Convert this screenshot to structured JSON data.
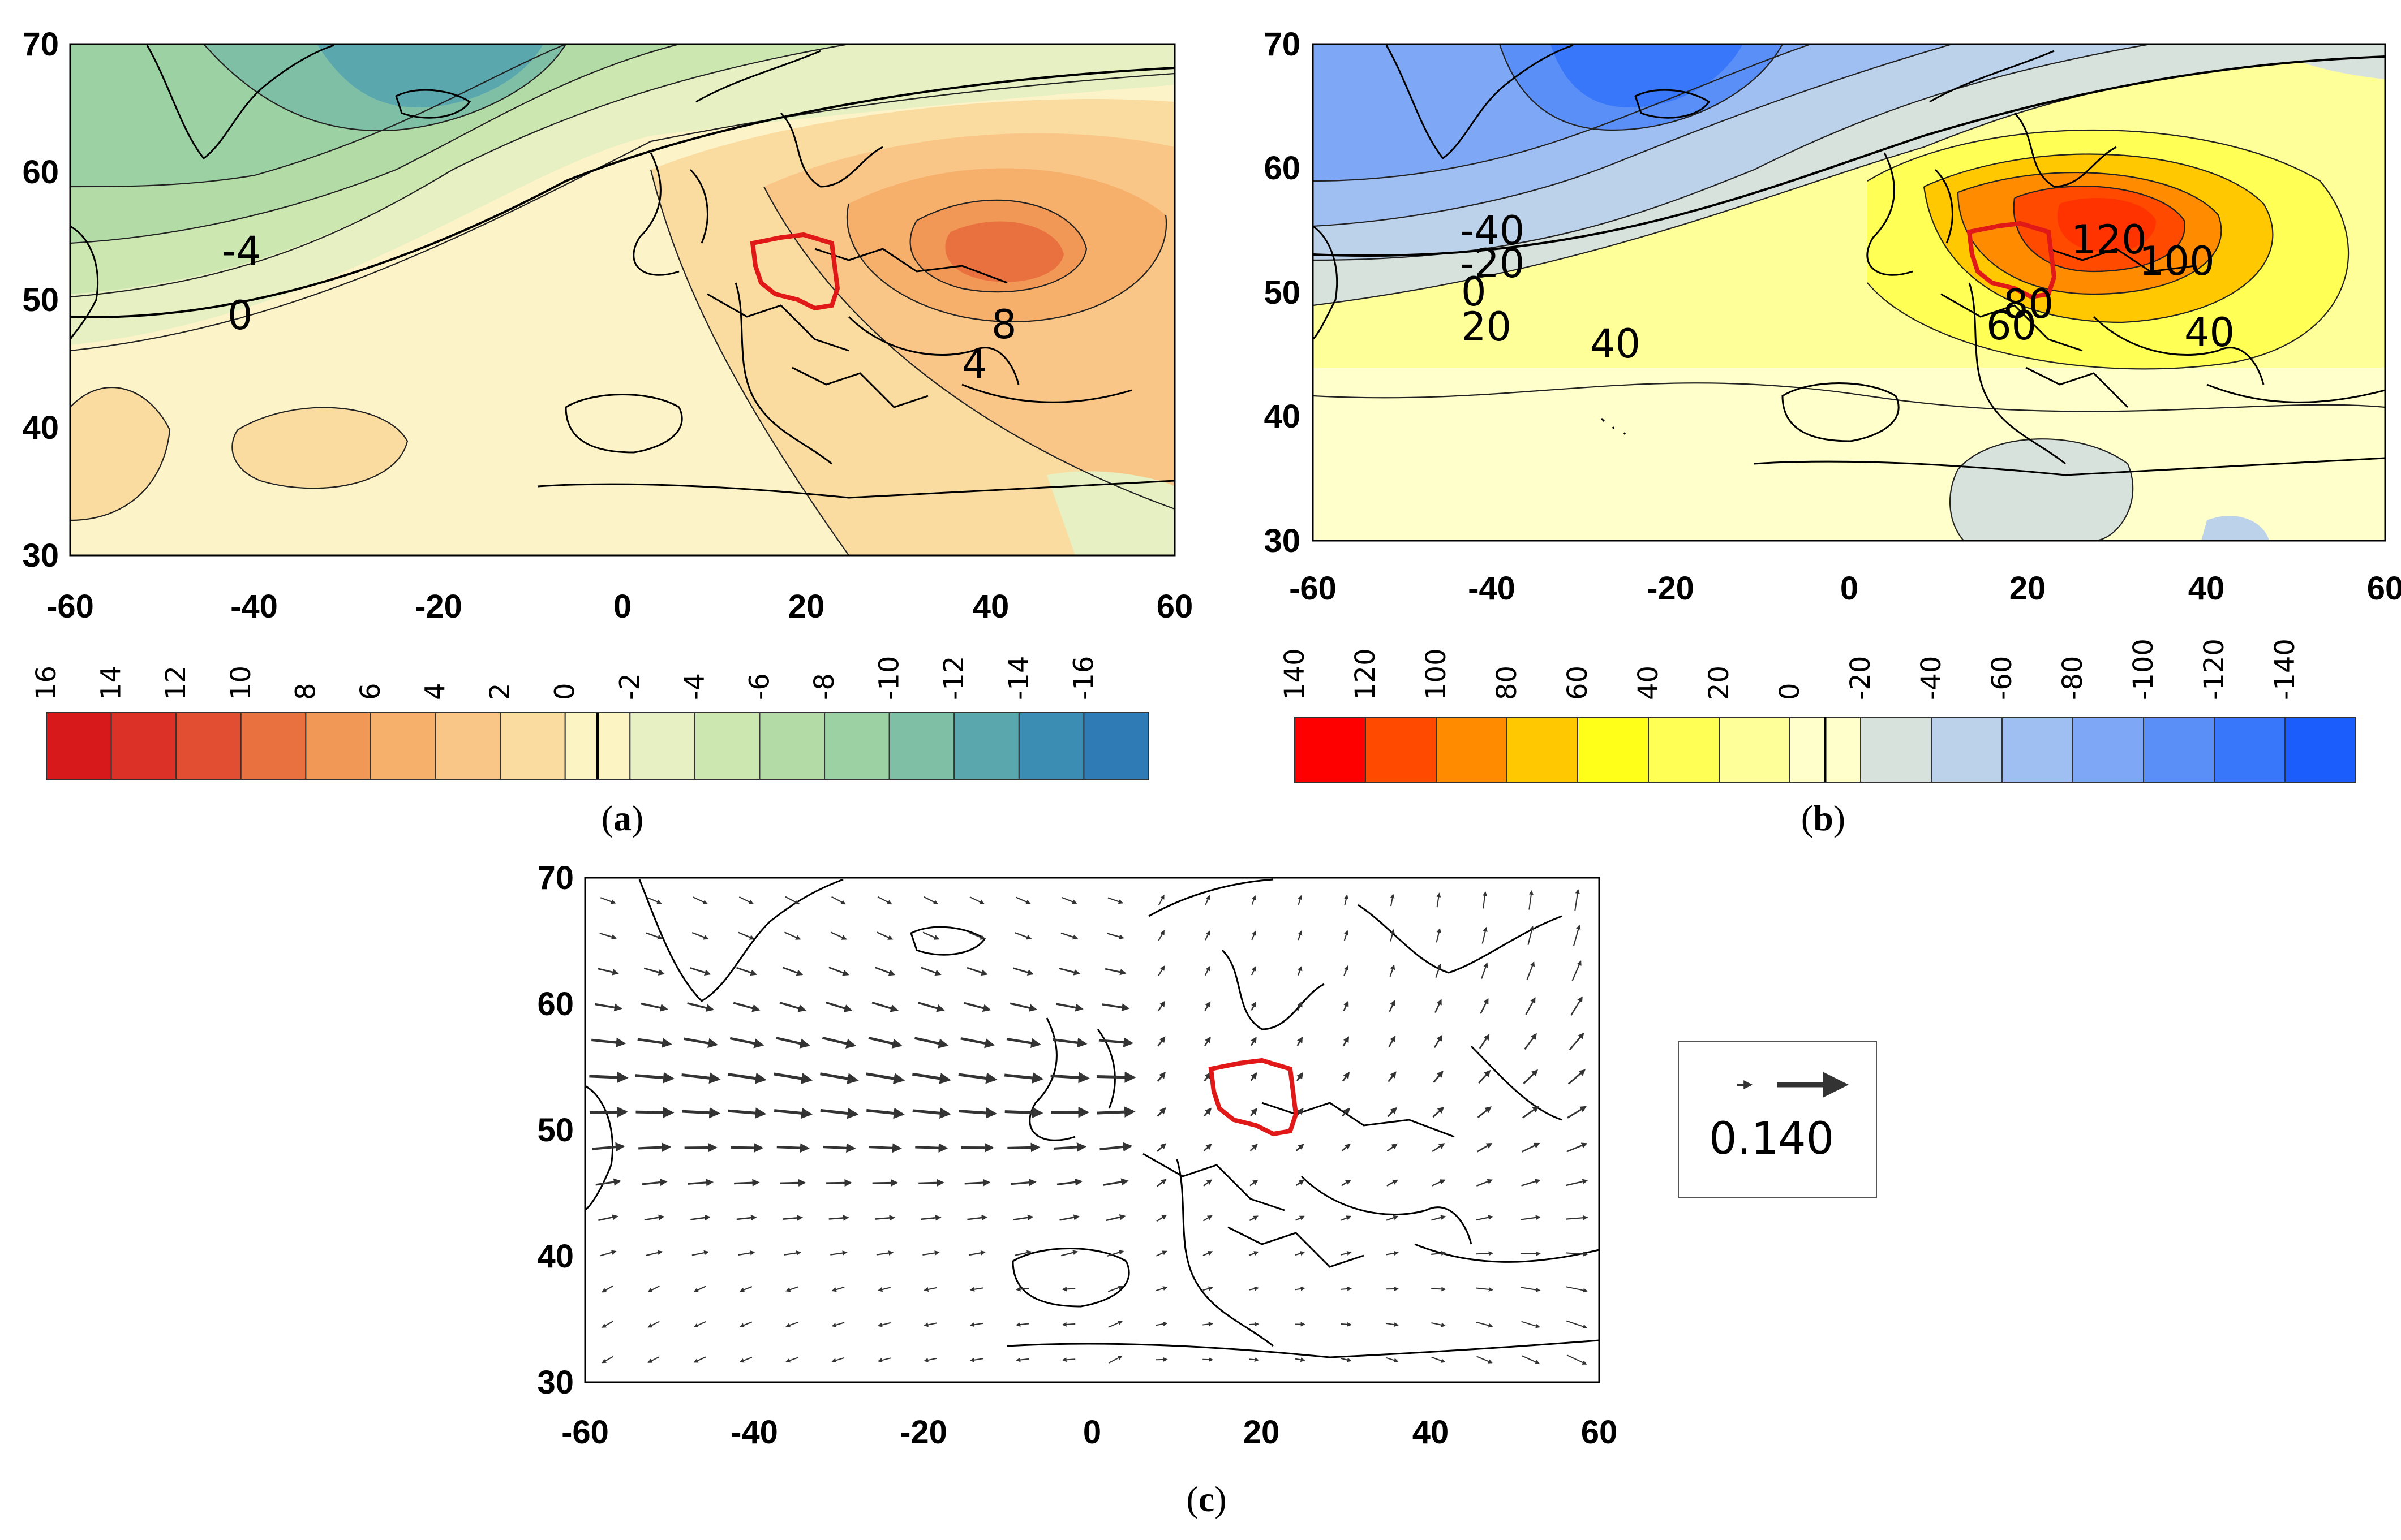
{
  "panels": {
    "a": {
      "label_open": "(",
      "label_letter": "a",
      "label_close": ")",
      "x_ticks": [
        "-60",
        "-40",
        "-20",
        "0",
        "20",
        "40",
        "60"
      ],
      "y_ticks": [
        "70",
        "60",
        "50",
        "40",
        "30"
      ],
      "contour_labels": [
        "-4",
        "0",
        "8",
        "4"
      ],
      "colorbar": {
        "labels": [
          "16",
          "14",
          "12",
          "10",
          "8",
          "6",
          "4",
          "2",
          "0",
          "-2",
          "-4",
          "-6",
          "-8",
          "-10",
          "-12",
          "-14",
          "-16"
        ],
        "colors": [
          "#d7191c",
          "#dc3126",
          "#e24e31",
          "#e9713f",
          "#f29856",
          "#f6b06c",
          "#f9c687",
          "#fbdca0",
          "#fdf4c3",
          "#e6f0c2",
          "#cce7b0",
          "#b3dba6",
          "#9bd1a3",
          "#7ebfa6",
          "#5aa8ae",
          "#3b8db4",
          "#2f7bb6"
        ]
      }
    },
    "b": {
      "label_open": "(",
      "label_letter": "b",
      "label_close": ")",
      "x_ticks": [
        "-60",
        "-40",
        "-20",
        "0",
        "20",
        "40",
        "60"
      ],
      "y_ticks": [
        "70",
        "60",
        "50",
        "40",
        "30"
      ],
      "contour_labels": [
        "-40",
        "-20",
        "0",
        "20",
        "40",
        "120",
        "100",
        "80",
        "60",
        "40"
      ],
      "colorbar": {
        "labels": [
          "140",
          "120",
          "100",
          "80",
          "60",
          "40",
          "20",
          "0",
          "-20",
          "-40",
          "-60",
          "-80",
          "-100",
          "-120",
          "-140"
        ],
        "colors": [
          "#ff0000",
          "#ff4a00",
          "#ff8c00",
          "#ffc800",
          "#ffff1a",
          "#ffff55",
          "#ffff99",
          "#ffffcc",
          "#d8e2dc",
          "#bcd2ea",
          "#9fbef2",
          "#7ea8f6",
          "#5a8ff8",
          "#3877fa",
          "#1a5cfc"
        ]
      }
    },
    "c": {
      "label_open": "(",
      "label_letter": "c",
      "label_close": ")",
      "x_ticks": [
        "-60",
        "-40",
        "-20",
        "0",
        "20",
        "40",
        "60"
      ],
      "y_ticks": [
        "70",
        "60",
        "50",
        "40",
        "30"
      ],
      "reference_vectors": {
        "small": "0.1",
        "large": "40"
      }
    }
  },
  "map_extent": {
    "lon": [
      -60,
      60
    ],
    "lat": [
      30,
      70
    ]
  },
  "colors": {
    "poland_outline": "#e01818",
    "coast": "#000000",
    "arrow": "#333333"
  }
}
